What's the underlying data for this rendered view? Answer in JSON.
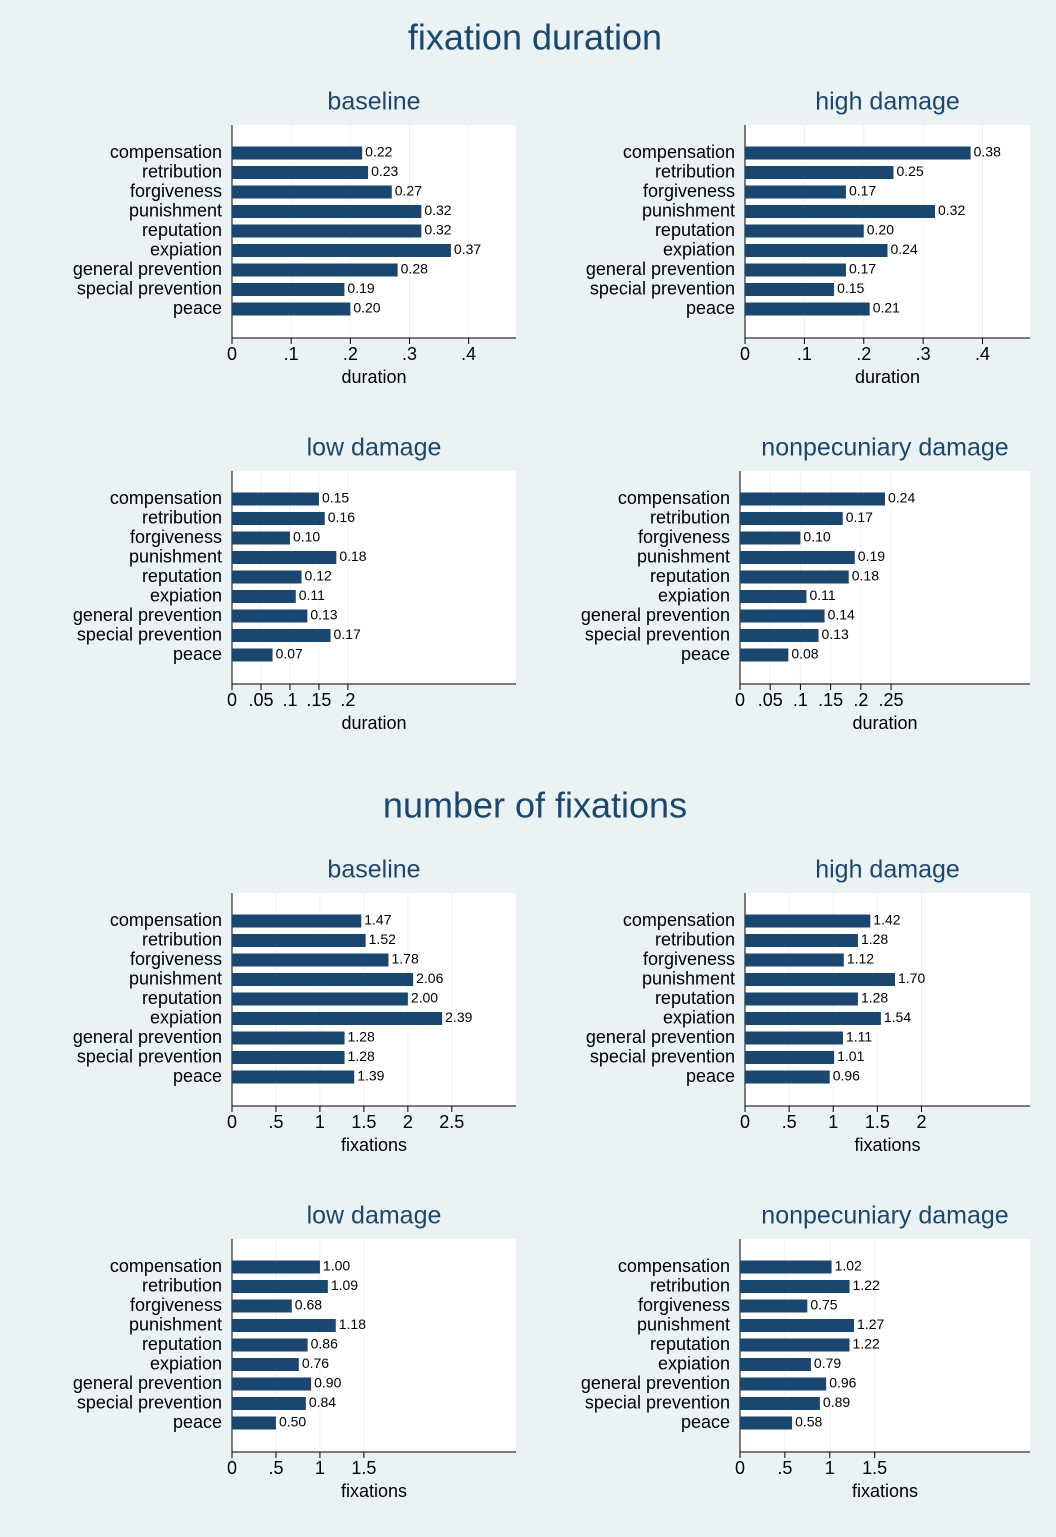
{
  "sections": [
    {
      "title": "fixation duration"
    },
    {
      "title": "number of fixations"
    }
  ],
  "chart_data": [
    {
      "type": "bar",
      "orientation": "horizontal",
      "title": "baseline",
      "categories": [
        "compensation",
        "retribution",
        "forgiveness",
        "punishment",
        "reputation",
        "expiation",
        "general prevention",
        "special prevention",
        "peace"
      ],
      "values": [
        0.22,
        0.23,
        0.27,
        0.32,
        0.32,
        0.37,
        0.28,
        0.19,
        0.2
      ],
      "value_labels": [
        "0.22",
        "0.23",
        "0.27",
        "0.32",
        "0.32",
        "0.37",
        "0.28",
        "0.19",
        "0.20"
      ],
      "color": "#1a476f",
      "xlim": [
        0,
        0.48
      ],
      "xticks": [
        0,
        {
          "value": 0.1,
          "label": ".1"
        },
        {
          "value": 0.2,
          "label": ".2"
        },
        {
          "value": 0.3,
          "label": ".3"
        },
        {
          "value": 0.4,
          "label": ".4"
        }
      ],
      "xlabel": "duration",
      "grid": true
    },
    {
      "type": "bar",
      "orientation": "horizontal",
      "title": "high damage",
      "categories": [
        "compensation",
        "retribution",
        "forgiveness",
        "punishment",
        "reputation",
        "expiation",
        "general prevention",
        "special prevention",
        "peace"
      ],
      "values": [
        0.38,
        0.25,
        0.17,
        0.32,
        0.2,
        0.24,
        0.17,
        0.15,
        0.21
      ],
      "value_labels": [
        "0.38",
        "0.25",
        "0.17",
        "0.32",
        "0.20",
        "0.24",
        "0.17",
        "0.15",
        "0.21"
      ],
      "color": "#1a476f",
      "xlim": [
        0,
        0.48
      ],
      "xticks": [
        0,
        {
          "value": 0.1,
          "label": ".1"
        },
        {
          "value": 0.2,
          "label": ".2"
        },
        {
          "value": 0.3,
          "label": ".3"
        },
        {
          "value": 0.4,
          "label": ".4"
        }
      ],
      "xlabel": "duration",
      "grid": true
    },
    {
      "type": "bar",
      "orientation": "horizontal",
      "title": "low damage",
      "categories": [
        "compensation",
        "retribution",
        "forgiveness",
        "punishment",
        "reputation",
        "expiation",
        "general prevention",
        "special prevention",
        "peace"
      ],
      "values": [
        0.15,
        0.16,
        0.1,
        0.18,
        0.12,
        0.11,
        0.13,
        0.17,
        0.07
      ],
      "value_labels": [
        "0.15",
        "0.16",
        "0.10",
        "0.18",
        "0.12",
        "0.11",
        "0.13",
        "0.17",
        "0.07"
      ],
      "color": "#1a476f",
      "xlim": [
        0,
        0.49
      ],
      "xticks": [
        0,
        {
          "value": 0.05,
          "label": ".05"
        },
        {
          "value": 0.1,
          "label": ".1"
        },
        {
          "value": 0.15,
          "label": ".15"
        },
        {
          "value": 0.2,
          "label": ".2"
        }
      ],
      "xlabel": "duration",
      "grid": true
    },
    {
      "type": "bar",
      "orientation": "horizontal",
      "title": "nonpecuniary damage",
      "categories": [
        "compensation",
        "retribution",
        "forgiveness",
        "punishment",
        "reputation",
        "expiation",
        "general prevention",
        "special prevention",
        "peace"
      ],
      "values": [
        0.24,
        0.17,
        0.1,
        0.19,
        0.18,
        0.11,
        0.14,
        0.13,
        0.08
      ],
      "value_labels": [
        "0.24",
        "0.17",
        "0.10",
        "0.19",
        "0.18",
        "0.11",
        "0.14",
        "0.13",
        "0.08"
      ],
      "color": "#1a476f",
      "xlim": [
        0,
        0.48
      ],
      "xticks": [
        0,
        {
          "value": 0.05,
          "label": ".05"
        },
        {
          "value": 0.1,
          "label": ".1"
        },
        {
          "value": 0.15,
          "label": ".15"
        },
        {
          "value": 0.2,
          "label": ".2"
        },
        {
          "value": 0.25,
          "label": ".25"
        }
      ],
      "xlabel": "duration",
      "grid": true
    },
    {
      "type": "bar",
      "orientation": "horizontal",
      "title": "baseline",
      "categories": [
        "compensation",
        "retribution",
        "forgiveness",
        "punishment",
        "reputation",
        "expiation",
        "general prevention",
        "special prevention",
        "peace"
      ],
      "values": [
        1.47,
        1.52,
        1.78,
        2.06,
        2.0,
        2.39,
        1.28,
        1.28,
        1.39
      ],
      "value_labels": [
        "1.47",
        "1.52",
        "1.78",
        "2.06",
        "2.00",
        "2.39",
        "1.28",
        "1.28",
        "1.39"
      ],
      "color": "#1a476f",
      "xlim": [
        0,
        3.23
      ],
      "xticks": [
        0,
        {
          "value": 0.5,
          "label": ".5"
        },
        1,
        1.5,
        2,
        2.5
      ],
      "xlabel": "fixations",
      "grid": true
    },
    {
      "type": "bar",
      "orientation": "horizontal",
      "title": "high damage",
      "categories": [
        "compensation",
        "retribution",
        "forgiveness",
        "punishment",
        "reputation",
        "expiation",
        "general prevention",
        "special prevention",
        "peace"
      ],
      "values": [
        1.42,
        1.28,
        1.12,
        1.7,
        1.28,
        1.54,
        1.11,
        1.01,
        0.96
      ],
      "value_labels": [
        "1.42",
        "1.28",
        "1.12",
        "1.70",
        "1.28",
        "1.54",
        "1.11",
        "1.01",
        "0.96"
      ],
      "color": "#1a476f",
      "xlim": [
        0,
        3.23
      ],
      "xticks": [
        0,
        {
          "value": 0.5,
          "label": ".5"
        },
        1,
        1.5,
        2
      ],
      "xlabel": "fixations",
      "grid": true
    },
    {
      "type": "bar",
      "orientation": "horizontal",
      "title": "low damage",
      "categories": [
        "compensation",
        "retribution",
        "forgiveness",
        "punishment",
        "reputation",
        "expiation",
        "general prevention",
        "special prevention",
        "peace"
      ],
      "values": [
        1.0,
        1.09,
        0.68,
        1.18,
        0.86,
        0.76,
        0.9,
        0.84,
        0.5
      ],
      "value_labels": [
        "1.00",
        "1.09",
        "0.68",
        "1.18",
        "0.86",
        "0.76",
        "0.90",
        "0.84",
        "0.50"
      ],
      "color": "#1a476f",
      "xlim": [
        0,
        3.23
      ],
      "xticks": [
        0,
        {
          "value": 0.5,
          "label": ".5"
        },
        1,
        1.5
      ],
      "xlabel": "fixations",
      "grid": true
    },
    {
      "type": "bar",
      "orientation": "horizontal",
      "title": "nonpecuniary damage",
      "categories": [
        "compensation",
        "retribution",
        "forgiveness",
        "punishment",
        "reputation",
        "expiation",
        "general prevention",
        "special prevention",
        "peace"
      ],
      "values": [
        1.02,
        1.22,
        0.75,
        1.27,
        1.22,
        0.79,
        0.96,
        0.89,
        0.58
      ],
      "value_labels": [
        "1.02",
        "1.22",
        "0.75",
        "1.27",
        "1.22",
        "0.79",
        "0.96",
        "0.89",
        "0.58"
      ],
      "color": "#1a476f",
      "xlim": [
        0,
        3.23
      ],
      "xticks": [
        0,
        {
          "value": 0.5,
          "label": ".5"
        },
        1,
        1.5
      ],
      "xlabel": "fixations",
      "grid": true
    }
  ]
}
